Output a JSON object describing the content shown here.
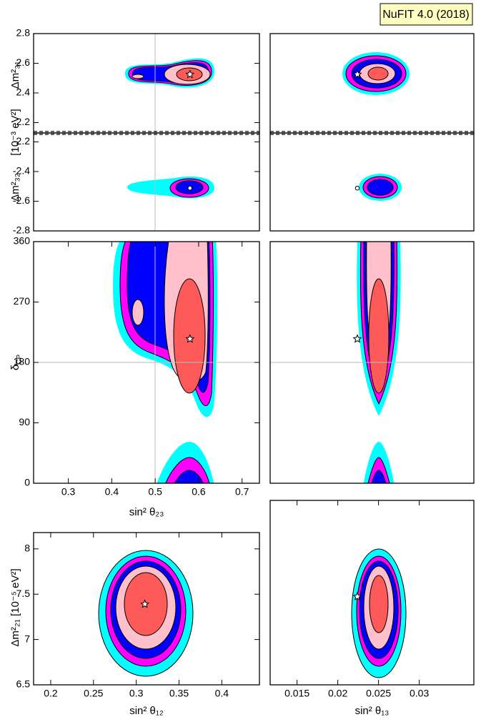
{
  "header": {
    "title": "NuFIT 4.0 (2018)"
  },
  "chart_data": [
    {
      "type": "contour",
      "ylabel": "Δm²₃₁",
      "ylabel_units": "[10⁻³ eV²]",
      "xlim": [
        0.22,
        0.74
      ],
      "ylim": [
        2.13,
        2.8
      ],
      "yticks": [
        2.2,
        2.4,
        2.6,
        2.8
      ],
      "best_fit": {
        "x": 0.58,
        "y": 2.525
      },
      "marker": "star"
    },
    {
      "type": "contour",
      "xlim": [
        0.0117,
        0.0367
      ],
      "ylim": [
        2.13,
        2.8
      ],
      "best_fit": {
        "x": 0.0224,
        "y": 2.525
      },
      "marker": "star"
    },
    {
      "type": "contour",
      "ylabel": "Δm²₃₂",
      "xlim": [
        0.22,
        0.74
      ],
      "ylim": [
        -2.8,
        -2.14
      ],
      "yticks": [
        -2.8,
        -2.6,
        -2.4,
        -2.2
      ],
      "best_fit": {
        "x": 0.58,
        "y": -2.512
      },
      "marker": "dot"
    },
    {
      "type": "contour",
      "xlim": [
        0.0117,
        0.0367
      ],
      "ylim": [
        -2.8,
        -2.14
      ],
      "best_fit": {
        "x": 0.0224,
        "y": -2.512
      },
      "marker": "dot"
    },
    {
      "type": "contour",
      "ylabel": {
        "symbol": "δ",
        "subscript": "CP"
      },
      "xlabel": "sin² θ₂₃",
      "xlim": [
        0.22,
        0.74
      ],
      "ylim": [
        0,
        360
      ],
      "xticks": [
        0.3,
        0.4,
        0.5,
        0.6,
        0.7
      ],
      "yticks": [
        0,
        90,
        180,
        270,
        360
      ],
      "best_fit": {
        "x": 0.58,
        "y": 215
      },
      "marker": "star"
    },
    {
      "type": "contour",
      "xlim": [
        0.0117,
        0.0367
      ],
      "ylim": [
        0,
        360
      ],
      "best_fit": {
        "x": 0.0224,
        "y": 215
      },
      "marker": "star"
    },
    {
      "type": "contour",
      "ylabel": "Δm²₂₁ [10⁻⁵ eV²]",
      "xlabel": "sin² θ₁₂",
      "xlim": [
        0.18,
        0.444
      ],
      "ylim": [
        6.5,
        8.18
      ],
      "xticks": [
        0.2,
        0.25,
        0.3,
        0.35,
        0.4
      ],
      "yticks": [
        6.5,
        7,
        7.5,
        8
      ],
      "best_fit": {
        "x": 0.31,
        "y": 7.39
      },
      "marker": "star"
    },
    {
      "type": "contour",
      "xlabel": "sin² θ₁₃",
      "xlim": [
        0.0117,
        0.0367
      ],
      "ylim": [
        6.5,
        8.36
      ],
      "xticks": [
        0.015,
        0.02,
        0.025,
        0.03
      ],
      "best_fit": {
        "x": 0.0224,
        "y": 7.39
      },
      "marker": "star"
    }
  ]
}
